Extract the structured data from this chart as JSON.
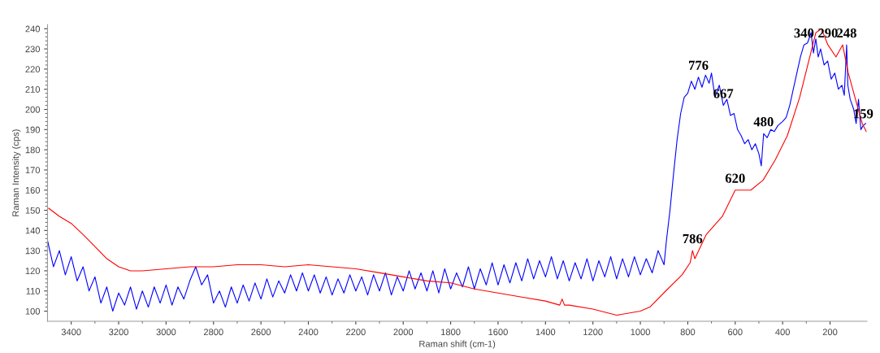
{
  "chart_data": {
    "type": "line",
    "xlabel": "Raman shift (cm-1)",
    "ylabel": "Raman Intensity (cps)",
    "xlim": [
      3500,
      45
    ],
    "ylim": [
      95,
      242
    ],
    "xticks": [
      3400,
      3200,
      3000,
      2800,
      2600,
      2400,
      2200,
      2000,
      1800,
      1600,
      1400,
      1200,
      1000,
      800,
      600,
      400,
      200
    ],
    "yticks": [
      100,
      110,
      120,
      130,
      140,
      150,
      160,
      170,
      180,
      190,
      200,
      210,
      220,
      230,
      240
    ],
    "grid": false,
    "legend": false,
    "marker": "none",
    "line_style": "solid",
    "series": [
      {
        "color": "#0000ff",
        "x": [
          3500,
          3475,
          3450,
          3425,
          3400,
          3375,
          3350,
          3325,
          3300,
          3275,
          3250,
          3225,
          3200,
          3175,
          3150,
          3125,
          3100,
          3075,
          3050,
          3025,
          3000,
          2975,
          2950,
          2925,
          2900,
          2875,
          2850,
          2825,
          2800,
          2775,
          2750,
          2725,
          2700,
          2675,
          2650,
          2625,
          2600,
          2575,
          2550,
          2525,
          2500,
          2475,
          2450,
          2425,
          2400,
          2375,
          2350,
          2325,
          2300,
          2275,
          2250,
          2225,
          2200,
          2175,
          2150,
          2125,
          2100,
          2075,
          2050,
          2025,
          2000,
          1975,
          1950,
          1925,
          1900,
          1875,
          1850,
          1825,
          1800,
          1775,
          1750,
          1725,
          1700,
          1675,
          1650,
          1625,
          1600,
          1575,
          1550,
          1525,
          1500,
          1475,
          1450,
          1425,
          1400,
          1375,
          1350,
          1325,
          1300,
          1275,
          1250,
          1225,
          1200,
          1175,
          1150,
          1125,
          1100,
          1075,
          1050,
          1025,
          1000,
          975,
          950,
          925,
          900,
          890,
          875,
          860,
          845,
          830,
          815,
          800,
          785,
          770,
          755,
          740,
          725,
          710,
          700,
          685,
          667,
          650,
          635,
          620,
          605,
          590,
          575,
          560,
          545,
          530,
          515,
          500,
          490,
          480,
          465,
          450,
          435,
          420,
          400,
          385,
          370,
          355,
          340,
          325,
          310,
          295,
          280,
          270,
          260,
          250,
          240,
          225,
          210,
          195,
          180,
          165,
          150,
          140,
          130,
          125,
          115,
          100,
          90,
          80,
          70,
          60,
          50
        ],
        "values": [
          135,
          122,
          130,
          118,
          127,
          115,
          122,
          110,
          117,
          104,
          112,
          100,
          109,
          103,
          112,
          101,
          110,
          102,
          112,
          104,
          113,
          103,
          112,
          106,
          115,
          122,
          113,
          118,
          104,
          110,
          102,
          112,
          104,
          113,
          105,
          114,
          106,
          116,
          107,
          115,
          109,
          118,
          110,
          119,
          110,
          118,
          109,
          117,
          108,
          116,
          109,
          118,
          110,
          117,
          108,
          118,
          110,
          119,
          108,
          117,
          110,
          120,
          111,
          119,
          110,
          120,
          109,
          121,
          111,
          119,
          112,
          122,
          111,
          121,
          113,
          124,
          113,
          123,
          114,
          124,
          115,
          126,
          116,
          125,
          117,
          127,
          116,
          125,
          115,
          124,
          116,
          126,
          115,
          125,
          117,
          127,
          116,
          126,
          117,
          127,
          118,
          126,
          119,
          130,
          123,
          135,
          150,
          168,
          185,
          198,
          206,
          208,
          214,
          210,
          216,
          211,
          217,
          213,
          218,
          206,
          212,
          202,
          205,
          197,
          198,
          190,
          187,
          183,
          185,
          180,
          183,
          178,
          172,
          188,
          186,
          190,
          189,
          192,
          194,
          196,
          202,
          210,
          218,
          226,
          232,
          233,
          238,
          228,
          235,
          226,
          230,
          222,
          224,
          215,
          218,
          210,
          212,
          207,
          232,
          212,
          205,
          200,
          193,
          205,
          190,
          192,
          193
        ]
      },
      {
        "color": "#ff0000",
        "x": [
          3495,
          3450,
          3400,
          3350,
          3300,
          3250,
          3200,
          3150,
          3100,
          3000,
          2900,
          2800,
          2700,
          2600,
          2500,
          2400,
          2300,
          2200,
          2100,
          2000,
          1900,
          1800,
          1700,
          1600,
          1500,
          1400,
          1340,
          1330,
          1320,
          1300,
          1200,
          1100,
          1000,
          960,
          893,
          824,
          790,
          780,
          770,
          722,
          654,
          600,
          534,
          482,
          431,
          380,
          328,
          294,
          260,
          236,
          209,
          175,
          147,
          123,
          88,
          64,
          47
        ],
        "values": [
          151,
          147,
          143.5,
          138,
          132,
          126,
          122,
          120,
          120,
          121,
          122,
          122,
          123,
          123,
          122,
          123,
          122,
          121,
          119,
          117,
          115,
          114,
          111,
          109,
          107,
          105,
          103,
          106,
          103,
          103,
          101,
          98,
          100,
          102,
          110,
          118,
          124,
          130,
          126,
          138,
          147,
          160,
          160,
          165,
          175,
          187,
          206,
          222,
          238,
          240,
          232,
          226,
          232,
          218,
          203,
          193,
          189
        ]
      }
    ],
    "annotations": [
      {
        "text": "776",
        "x": 755,
        "y": 216
      },
      {
        "text": "667",
        "x": 650,
        "y": 202
      },
      {
        "text": "480",
        "x": 480,
        "y": 188
      },
      {
        "text": "620",
        "x": 600,
        "y": 160
      },
      {
        "text": "786",
        "x": 780,
        "y": 130
      },
      {
        "text": "340",
        "x": 310,
        "y": 232
      },
      {
        "text": "290",
        "x": 209,
        "y": 232
      },
      {
        "text": "248",
        "x": 130,
        "y": 232
      },
      {
        "text": "159",
        "x": 60,
        "y": 192
      }
    ]
  }
}
